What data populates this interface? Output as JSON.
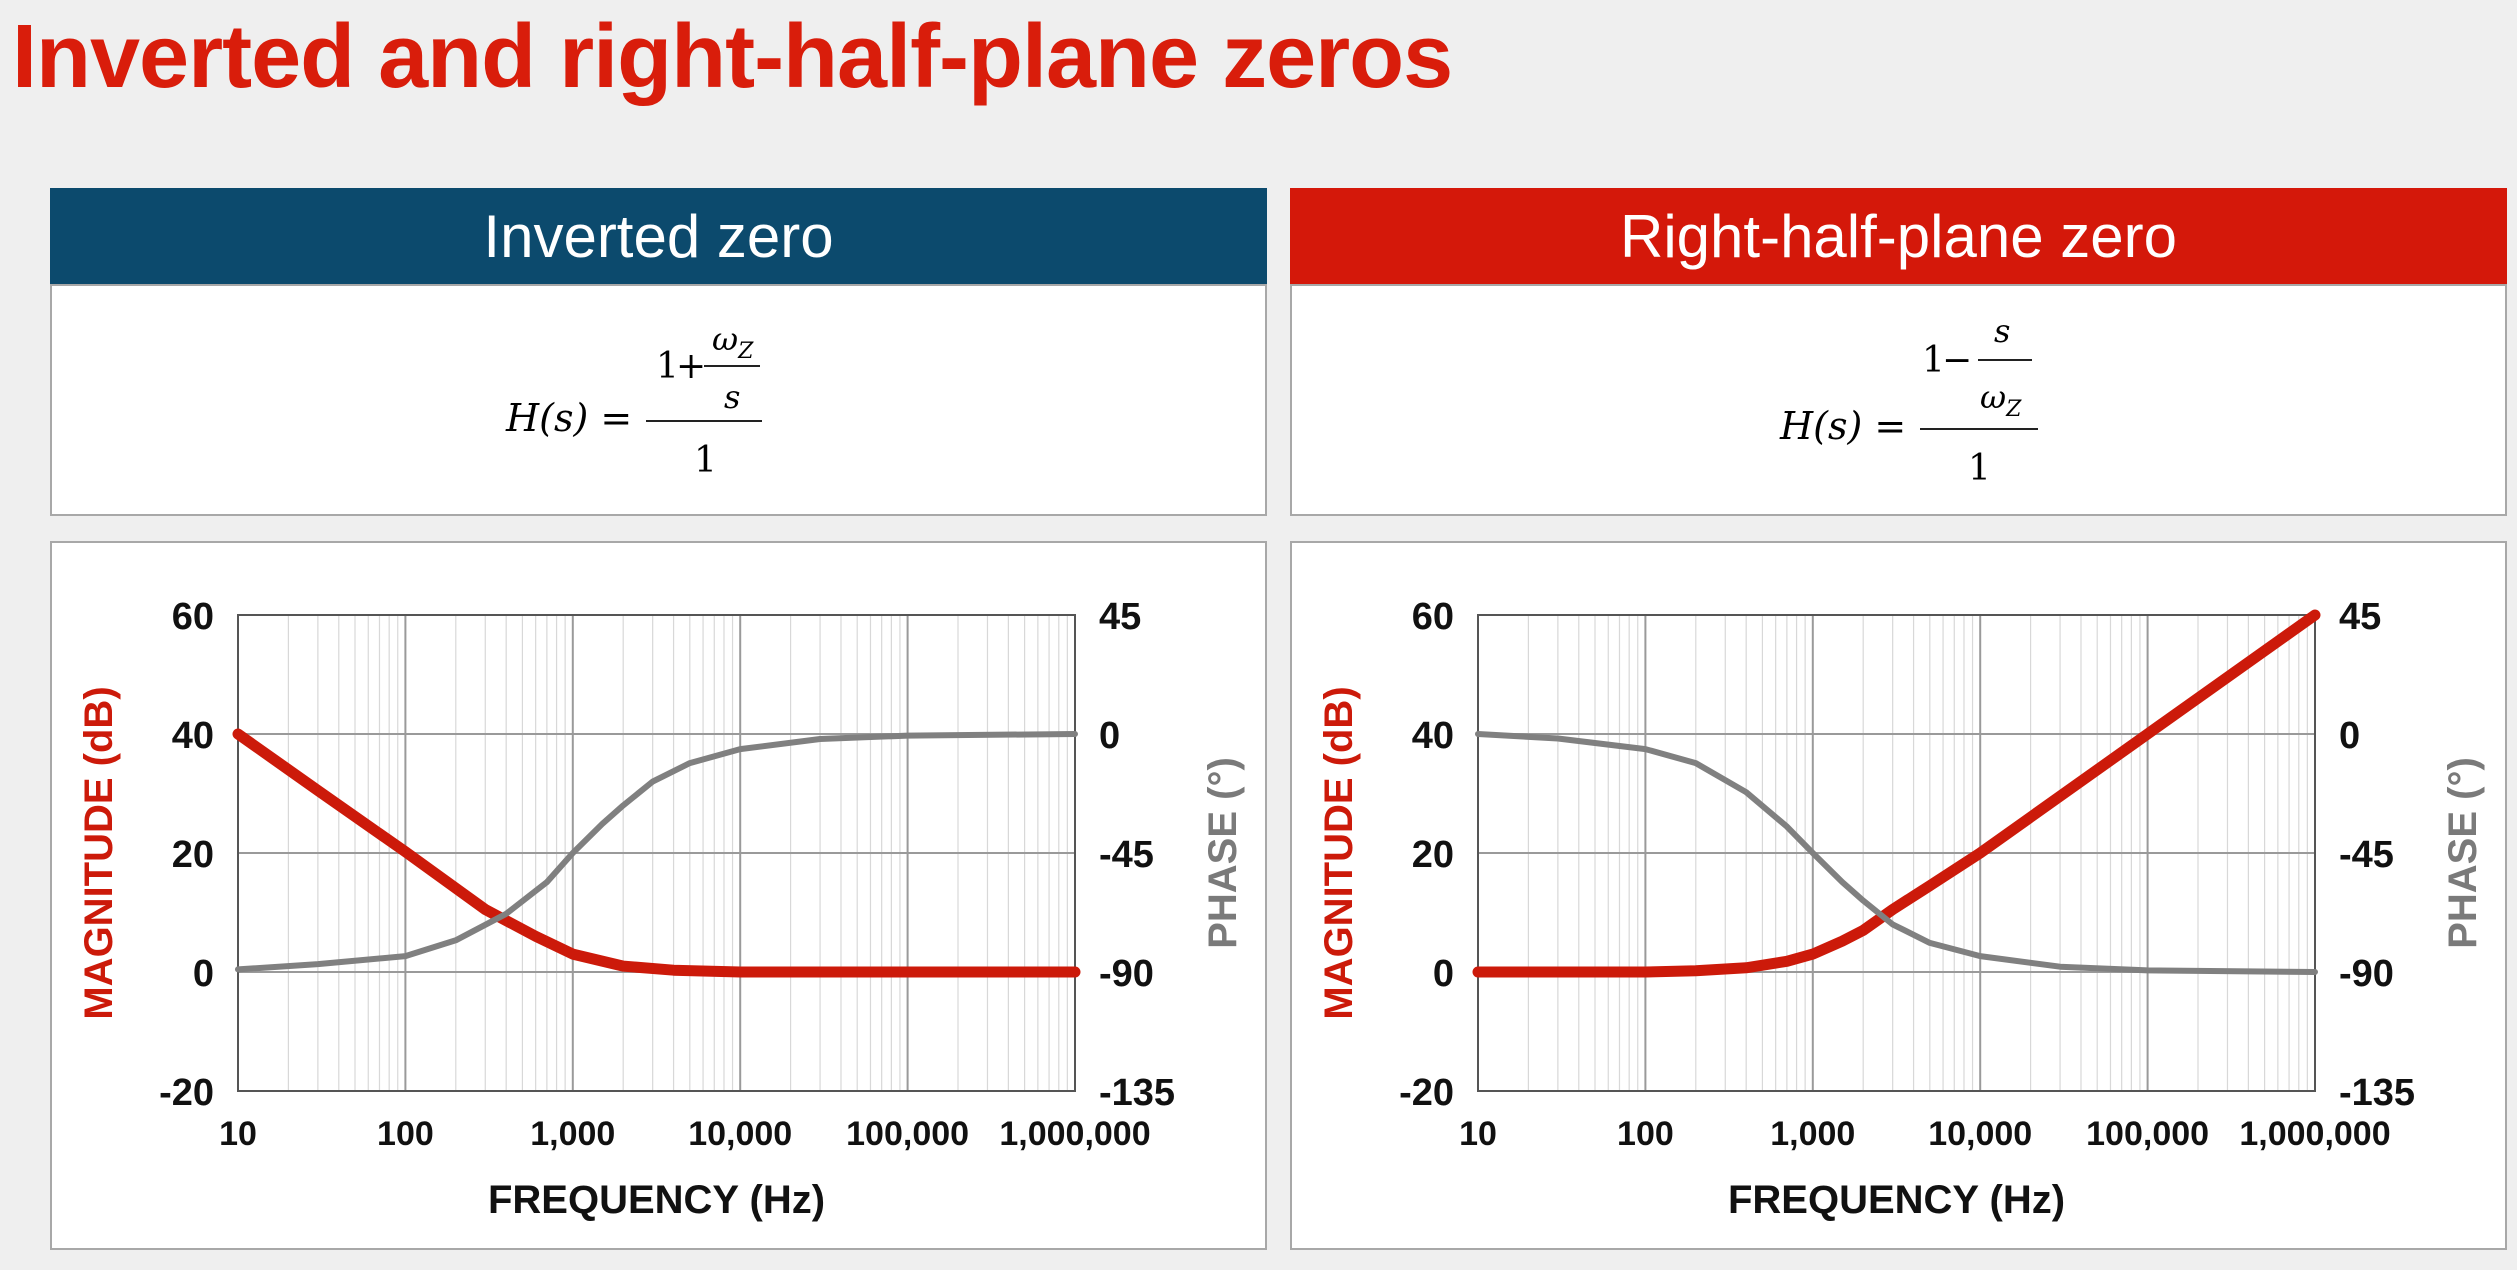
{
  "title": "Inverted and right-half-plane zeros",
  "panels": [
    {
      "header": "Inverted zero",
      "header_color": "#0c4a6d",
      "formula": {
        "lhs": "H(s) =",
        "top_const": "1",
        "top_op": "+",
        "inner_num": "ωZ",
        "inner_den": "s",
        "den": "1"
      }
    },
    {
      "header": "Right-half-plane zero",
      "header_color": "#d4180a",
      "formula": {
        "lhs": "H(s) =",
        "top_const": "1",
        "top_op": "−",
        "inner_num": "s",
        "inner_den": "ωZ",
        "den": "1"
      }
    }
  ],
  "chart_data": [
    {
      "type": "line",
      "xscale": "log",
      "xlabel": "FREQUENCY (Hz)",
      "ylabel": "MAGNITUDE (dB)",
      "y2label": "PHASE (°)",
      "xticks": [
        10,
        100,
        1000,
        10000,
        100000,
        1000000
      ],
      "xticklabels": [
        "10",
        "100",
        "1,000",
        "10,000",
        "100,000",
        "1,000,000"
      ],
      "yticks": [
        60,
        40,
        20,
        0,
        -20
      ],
      "y2ticks": [
        45,
        0,
        -45,
        -90,
        -135
      ],
      "xlim": [
        10,
        1000000
      ],
      "ylim": [
        -20,
        60
      ],
      "y2lim": [
        -135,
        45
      ],
      "grid": true,
      "series": [
        {
          "axis": "left",
          "color": "#cc1a0a",
          "x": [
            10,
            30,
            100,
            300,
            600,
            1000,
            2000,
            4000,
            10000,
            100000,
            1000000
          ],
          "y": [
            40,
            30.5,
            20.2,
            10.5,
            6.0,
            3.0,
            1.0,
            0.3,
            0,
            0,
            0
          ]
        },
        {
          "axis": "right",
          "color": "#808080",
          "x": [
            10,
            30,
            100,
            200,
            400,
            700,
            1000,
            1500,
            2000,
            3000,
            5000,
            10000,
            30000,
            100000,
            1000000
          ],
          "y": [
            -89,
            -87,
            -84,
            -78,
            -68,
            -56,
            -45,
            -34,
            -27,
            -18,
            -11,
            -5.7,
            -1.9,
            -0.6,
            0
          ]
        }
      ]
    },
    {
      "type": "line",
      "xscale": "log",
      "xlabel": "FREQUENCY (Hz)",
      "ylabel": "MAGNITUDE (dB)",
      "y2label": "PHASE (°)",
      "xticks": [
        10,
        100,
        1000,
        10000,
        100000,
        1000000
      ],
      "xticklabels": [
        "10",
        "100",
        "1,000",
        "10,000",
        "100,000",
        "1,000,000"
      ],
      "yticks": [
        60,
        40,
        20,
        0,
        -20
      ],
      "y2ticks": [
        45,
        0,
        -45,
        -90,
        -135
      ],
      "xlim": [
        10,
        1000000
      ],
      "ylim": [
        -20,
        60
      ],
      "y2lim": [
        -135,
        45
      ],
      "grid": true,
      "series": [
        {
          "axis": "left",
          "color": "#cc1a0a",
          "x": [
            10,
            100,
            200,
            400,
            700,
            1000,
            1500,
            2000,
            3000,
            5000,
            10000,
            100000,
            1000000
          ],
          "y": [
            0,
            0,
            0.2,
            0.7,
            1.8,
            3.0,
            5.2,
            7.0,
            10.5,
            14.5,
            20.0,
            40.0,
            60.0
          ]
        },
        {
          "axis": "right",
          "color": "#808080",
          "x": [
            10,
            30,
            100,
            200,
            400,
            700,
            1000,
            1500,
            2000,
            3000,
            5000,
            10000,
            30000,
            100000,
            1000000
          ],
          "y": [
            0,
            -1.7,
            -5.7,
            -11,
            -22,
            -35,
            -45,
            -56,
            -63,
            -72,
            -79,
            -84,
            -88,
            -89.4,
            -90
          ]
        }
      ]
    }
  ]
}
